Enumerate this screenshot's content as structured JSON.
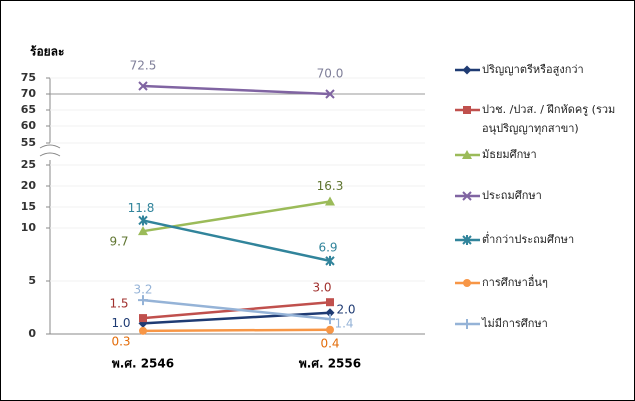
{
  "chart_data": {
    "type": "line",
    "y_label": "ร้อยละ",
    "categories": [
      "พ.ศ. 2546",
      "พ.ศ. 2556"
    ],
    "ylim": [
      0,
      75
    ],
    "yticks": [
      0,
      5,
      10,
      15,
      20,
      25,
      55,
      60,
      65,
      70,
      75
    ],
    "axis_break": true,
    "legend": "right",
    "series": [
      {
        "name": "ปริญญาตรีหรือสูงกว่า",
        "color": "#1f3b73",
        "values": [
          1.0,
          2.0
        ],
        "value_labels": [
          "1.0",
          "2.0"
        ]
      },
      {
        "name": "ปวช. /ปวส. / ฝึกหัดครู (รวมอนุปริญญาทุกสาขา)",
        "color": "#c0504d",
        "values": [
          1.5,
          3.0
        ],
        "value_labels": [
          "1.5",
          "3.0"
        ]
      },
      {
        "name": "มัธยมศึกษา",
        "color": "#9bbb59",
        "values": [
          9.7,
          16.3
        ],
        "value_labels": [
          "9.7",
          "16.3"
        ]
      },
      {
        "name": "ประถมศึกษา",
        "color": "#8064a2",
        "values": [
          72.5,
          70.0
        ],
        "value_labels": [
          "72.5",
          "70.0"
        ]
      },
      {
        "name": "ต่ำกว่าประถมศึกษา",
        "color": "#31849b",
        "values": [
          11.8,
          6.9
        ],
        "value_labels": [
          "11.8",
          "6.9"
        ]
      },
      {
        "name": "การศึกษาอื่นๆ",
        "color": "#f79646",
        "values": [
          0.3,
          0.4
        ],
        "value_labels": [
          "0.3",
          "0.4"
        ]
      },
      {
        "name": "ไม่มีการศึกษา",
        "color": "#95b3d7",
        "values": [
          3.2,
          1.4
        ],
        "value_labels": [
          "3.2",
          "1.4"
        ]
      }
    ]
  }
}
